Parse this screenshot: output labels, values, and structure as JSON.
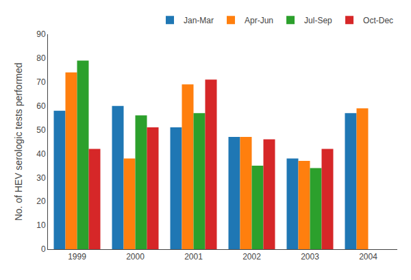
{
  "chart_data": {
    "type": "bar",
    "categories": [
      "1999",
      "2000",
      "2001",
      "2002",
      "2003",
      "2004"
    ],
    "series": [
      {
        "name": "Jan-Mar",
        "values": [
          58,
          60,
          51,
          47,
          38,
          57
        ]
      },
      {
        "name": "Apr-Jun",
        "values": [
          74,
          38,
          69,
          47,
          37,
          59
        ]
      },
      {
        "name": "Jul-Sep",
        "values": [
          79,
          56,
          57,
          35,
          34,
          null
        ]
      },
      {
        "name": "Oct-Dec",
        "values": [
          42,
          51,
          71,
          46,
          42,
          null
        ]
      }
    ],
    "ylabel": "No. of HEV serologic tests performed",
    "ylim": [
      0,
      90
    ],
    "yticks": [
      0,
      10,
      20,
      30,
      40,
      50,
      60,
      70,
      80,
      90
    ],
    "legend": "upper right",
    "grid": false
  }
}
